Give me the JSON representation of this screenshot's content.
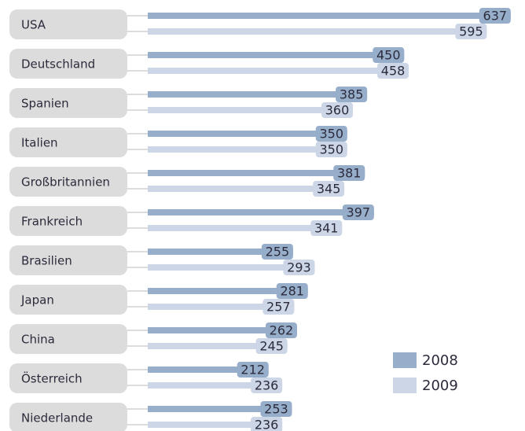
{
  "chart_data": {
    "type": "bar",
    "orientation": "horizontal",
    "categories": [
      "USA",
      "Deutschland",
      "Spanien",
      "Italien",
      "Großbritannien",
      "Frankreich",
      "Brasilien",
      "Japan",
      "China",
      "Österreich",
      "Niederlande"
    ],
    "series": [
      {
        "name": "2008",
        "color": "#97aecb",
        "values": [
          637,
          450,
          385,
          350,
          381,
          397,
          255,
          281,
          262,
          212,
          253
        ]
      },
      {
        "name": "2009",
        "color": "#ccd6e6",
        "values": [
          595,
          458,
          360,
          350,
          345,
          341,
          293,
          257,
          245,
          236,
          236
        ]
      }
    ],
    "legend": "bottom-right"
  }
}
